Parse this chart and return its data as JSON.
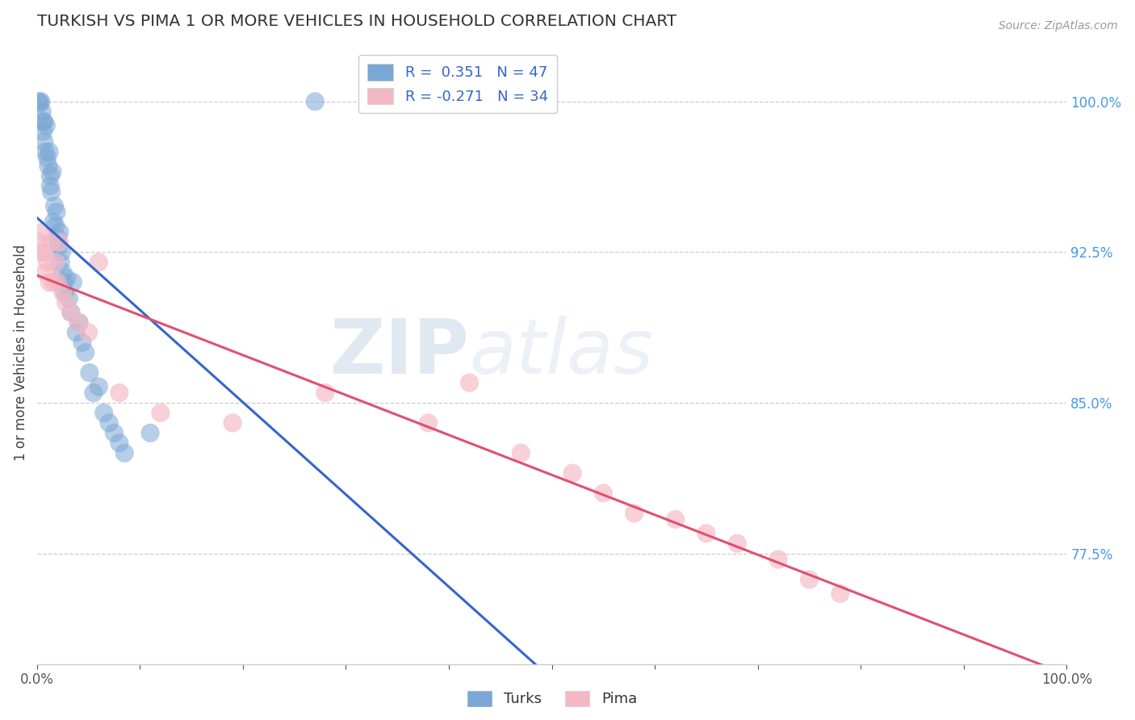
{
  "title": "TURKISH VS PIMA 1 OR MORE VEHICLES IN HOUSEHOLD CORRELATION CHART",
  "source": "Source: ZipAtlas.com",
  "ylabel": "1 or more Vehicles in Household",
  "xlim": [
    0.0,
    1.0
  ],
  "ylim": [
    0.72,
    1.03
  ],
  "ytick_labels_right": [
    "77.5%",
    "85.0%",
    "92.5%",
    "100.0%"
  ],
  "ytick_positions_right": [
    0.775,
    0.85,
    0.925,
    1.0
  ],
  "grid_color": "#cccccc",
  "background_color": "#ffffff",
  "turks_color": "#7ba7d4",
  "pima_color": "#f4b8c4",
  "turks_line_color": "#3366cc",
  "pima_line_color": "#e05070",
  "R_turks": 0.351,
  "N_turks": 47,
  "R_pima": -0.271,
  "N_pima": 34,
  "turks_x": [
    0.002,
    0.003,
    0.004,
    0.005,
    0.006,
    0.006,
    0.007,
    0.007,
    0.008,
    0.009,
    0.01,
    0.011,
    0.012,
    0.013,
    0.013,
    0.014,
    0.015,
    0.016,
    0.017,
    0.018,
    0.019,
    0.02,
    0.021,
    0.022,
    0.023,
    0.024,
    0.025,
    0.026,
    0.027,
    0.029,
    0.031,
    0.033,
    0.035,
    0.038,
    0.041,
    0.044,
    0.047,
    0.051,
    0.055,
    0.06,
    0.065,
    0.07,
    0.075,
    0.08,
    0.085,
    0.11,
    0.27
  ],
  "turks_y": [
    1.0,
    0.999,
    1.0,
    0.995,
    0.99,
    0.985,
    0.98,
    0.99,
    0.975,
    0.988,
    0.972,
    0.968,
    0.975,
    0.963,
    0.958,
    0.955,
    0.965,
    0.94,
    0.948,
    0.938,
    0.945,
    0.932,
    0.928,
    0.935,
    0.92,
    0.925,
    0.915,
    0.91,
    0.905,
    0.912,
    0.902,
    0.895,
    0.91,
    0.885,
    0.89,
    0.88,
    0.875,
    0.865,
    0.855,
    0.858,
    0.845,
    0.84,
    0.835,
    0.83,
    0.825,
    0.835,
    1.0
  ],
  "pima_x": [
    0.002,
    0.004,
    0.005,
    0.007,
    0.008,
    0.01,
    0.012,
    0.014,
    0.016,
    0.018,
    0.02,
    0.022,
    0.025,
    0.028,
    0.033,
    0.04,
    0.05,
    0.06,
    0.08,
    0.12,
    0.19,
    0.28,
    0.38,
    0.42,
    0.47,
    0.52,
    0.55,
    0.58,
    0.62,
    0.65,
    0.68,
    0.72,
    0.75,
    0.78
  ],
  "pima_y": [
    0.93,
    0.925,
    0.935,
    0.925,
    0.915,
    0.92,
    0.91,
    0.93,
    0.91,
    0.92,
    0.91,
    0.93,
    0.905,
    0.9,
    0.895,
    0.89,
    0.885,
    0.92,
    0.855,
    0.845,
    0.84,
    0.855,
    0.84,
    0.86,
    0.825,
    0.815,
    0.805,
    0.795,
    0.792,
    0.785,
    0.78,
    0.772,
    0.762,
    0.755
  ],
  "watermark_zip": "ZIP",
  "watermark_atlas": "atlas"
}
